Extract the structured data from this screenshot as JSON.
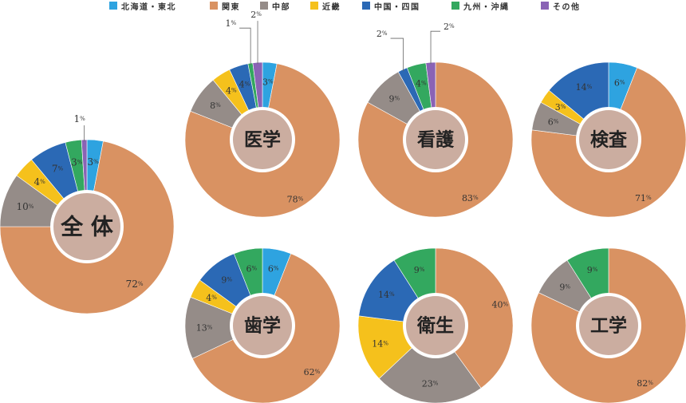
{
  "legend": [
    {
      "label": "北海道・東北",
      "color": "#2EA3E0"
    },
    {
      "label": "関東",
      "color": "#D99262"
    },
    {
      "label": "中部",
      "color": "#958C88"
    },
    {
      "label": "近畿",
      "color": "#F5C11C"
    },
    {
      "label": "中国・四国",
      "color": "#2B69B5"
    },
    {
      "label": "九州・沖縄",
      "color": "#33A85F"
    },
    {
      "label": "その他",
      "color": "#8A63B5"
    }
  ],
  "colors": {
    "北海道・東北": "#2EA3E0",
    "関東": "#D99262",
    "中部": "#958C88",
    "近畿": "#F5C11C",
    "中国・四国": "#2B69B5",
    "九州・沖縄": "#33A85F",
    "その他": "#8A63B5",
    "center_fill": "#CBADA0"
  },
  "unit": "%",
  "chart_data": [
    {
      "type": "pie",
      "title": "全 体",
      "categories": [
        "北海道・東北",
        "関東",
        "中部",
        "近畿",
        "中国・四国",
        "九州・沖縄",
        "その他"
      ],
      "values": [
        3,
        72,
        10,
        4,
        7,
        3,
        1
      ]
    },
    {
      "type": "pie",
      "title": "医学",
      "categories": [
        "北海道・東北",
        "関東",
        "中部",
        "近畿",
        "中国・四国",
        "九州・沖縄",
        "その他"
      ],
      "values": [
        3,
        78,
        8,
        4,
        4,
        1,
        2
      ]
    },
    {
      "type": "pie",
      "title": "看護",
      "categories": [
        "関東",
        "中部",
        "中国・四国",
        "九州・沖縄",
        "その他"
      ],
      "values": [
        83,
        9,
        2,
        4,
        2
      ]
    },
    {
      "type": "pie",
      "title": "検査",
      "categories": [
        "北海道・東北",
        "関東",
        "中部",
        "近畿",
        "中国・四国"
      ],
      "values": [
        6,
        71,
        6,
        3,
        14
      ]
    },
    {
      "type": "pie",
      "title": "歯学",
      "categories": [
        "北海道・東北",
        "関東",
        "中部",
        "近畿",
        "中国・四国",
        "九州・沖縄"
      ],
      "values": [
        6,
        62,
        13,
        4,
        9,
        6
      ]
    },
    {
      "type": "pie",
      "title": "衛生",
      "categories": [
        "関東",
        "中部",
        "近畿",
        "中国・四国",
        "九州・沖縄"
      ],
      "values": [
        40,
        23,
        14,
        14,
        9
      ]
    },
    {
      "type": "pie",
      "title": "工学",
      "categories": [
        "関東",
        "中部",
        "九州・沖縄"
      ],
      "values": [
        82,
        9,
        9
      ]
    }
  ]
}
